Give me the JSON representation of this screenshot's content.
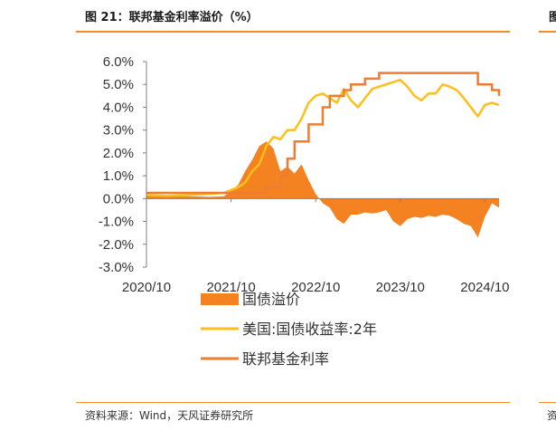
{
  "page": {
    "title": "图 21：联邦基金利率溢价（%）",
    "source": "资料来源：Wind，天风证券研究所",
    "edge_title": "图",
    "edge_source": "资"
  },
  "colors": {
    "premium": "#f58220",
    "us_yield": "#ffbe1a",
    "fed_rate": "#ee7d31",
    "axis": "#7f7f7f",
    "accent": "#f08c2a"
  },
  "chart_data": {
    "type": "line",
    "ylim": [
      -3.0,
      6.0
    ],
    "yticks": [
      "6.0%",
      "5.0%",
      "4.0%",
      "3.0%",
      "2.0%",
      "1.0%",
      "0.0%",
      "-1.0%",
      "-2.0%",
      "-3.0%"
    ],
    "xticks": [
      "2020/10",
      "2021/10",
      "2022/10",
      "2023/10",
      "2024/10"
    ],
    "x_start": "2020/10",
    "x_end": "2024/12",
    "series": [
      {
        "name": "国债溢价",
        "kind": "area",
        "x": [
          "2020/10",
          "2021/01",
          "2021/04",
          "2021/07",
          "2021/09",
          "2021/11",
          "2021/12",
          "2022/01",
          "2022/02",
          "2022/03",
          "2022/04",
          "2022/05",
          "2022/06",
          "2022/07",
          "2022/08",
          "2022/09",
          "2022/10",
          "2022/11",
          "2022/12",
          "2023/01",
          "2023/02",
          "2023/03",
          "2023/04",
          "2023/05",
          "2023/06",
          "2023/07",
          "2023/08",
          "2023/09",
          "2023/10",
          "2023/11",
          "2023/12",
          "2024/01",
          "2024/02",
          "2024/03",
          "2024/04",
          "2024/05",
          "2024/06",
          "2024/07",
          "2024/08",
          "2024/09",
          "2024/10",
          "2024/11",
          "2024/12"
        ],
        "values": [
          0.15,
          0.1,
          0.1,
          0.08,
          0.1,
          0.6,
          1.2,
          1.7,
          2.3,
          2.5,
          2.2,
          1.2,
          1.4,
          1.1,
          1.5,
          0.8,
          0.2,
          -0.2,
          -0.4,
          -0.9,
          -1.1,
          -0.7,
          -0.7,
          -0.6,
          -0.65,
          -0.6,
          -0.5,
          -1.0,
          -1.2,
          -0.9,
          -0.8,
          -0.85,
          -0.75,
          -0.8,
          -0.7,
          -0.75,
          -0.9,
          -1.1,
          -1.2,
          -1.7,
          -0.8,
          -0.2,
          -0.4
        ]
      },
      {
        "name": "美国:国债收益率:2年",
        "kind": "line",
        "x": [
          "2020/10",
          "2021/01",
          "2021/04",
          "2021/07",
          "2021/09",
          "2021/11",
          "2021/12",
          "2022/01",
          "2022/02",
          "2022/03",
          "2022/04",
          "2022/05",
          "2022/06",
          "2022/07",
          "2022/08",
          "2022/09",
          "2022/10",
          "2022/11",
          "2022/12",
          "2023/01",
          "2023/02",
          "2023/03",
          "2023/04",
          "2023/05",
          "2023/06",
          "2023/07",
          "2023/08",
          "2023/09",
          "2023/10",
          "2023/11",
          "2023/12",
          "2024/01",
          "2024/02",
          "2024/03",
          "2024/04",
          "2024/05",
          "2024/06",
          "2024/07",
          "2024/08",
          "2024/09",
          "2024/10",
          "2024/11",
          "2024/12"
        ],
        "values": [
          0.15,
          0.12,
          0.16,
          0.2,
          0.25,
          0.5,
          0.7,
          1.2,
          1.5,
          2.3,
          2.7,
          2.6,
          3.0,
          3.0,
          3.5,
          4.2,
          4.5,
          4.6,
          4.4,
          4.2,
          4.8,
          4.3,
          4.0,
          4.4,
          4.8,
          4.9,
          5.0,
          5.1,
          5.2,
          4.9,
          4.5,
          4.3,
          4.6,
          4.6,
          5.0,
          4.9,
          4.75,
          4.4,
          4.0,
          3.6,
          4.1,
          4.2,
          4.1
        ]
      },
      {
        "name": "联邦基金利率",
        "kind": "step",
        "x": [
          "2020/10",
          "2022/02",
          "2022/03",
          "2022/05",
          "2022/06",
          "2022/07",
          "2022/09",
          "2022/11",
          "2022/12",
          "2023/02",
          "2023/03",
          "2023/05",
          "2023/07",
          "2024/09",
          "2024/11",
          "2024/12"
        ],
        "values": [
          0.25,
          0.25,
          0.5,
          1.0,
          1.75,
          2.5,
          3.25,
          4.0,
          4.5,
          4.75,
          5.0,
          5.25,
          5.5,
          5.0,
          4.75,
          4.5
        ]
      }
    ],
    "legend_position": "bottom"
  }
}
